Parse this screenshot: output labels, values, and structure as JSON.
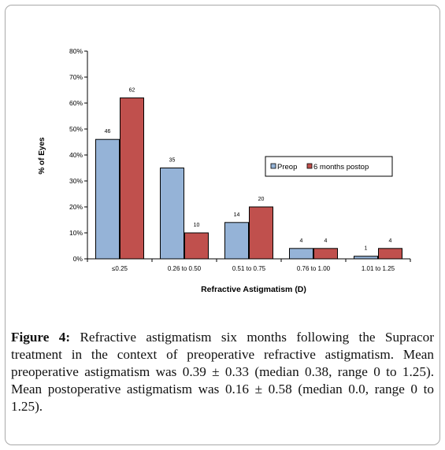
{
  "chart_data": {
    "type": "bar",
    "categories": [
      "≤0.25",
      "0.26 to 0.50",
      "0.51 to 0.75",
      "0.76 to 1.00",
      "1.01 to 1.25"
    ],
    "series": [
      {
        "name": "Preop",
        "values": [
          46,
          35,
          14,
          4,
          1
        ],
        "color": "#95b3d7"
      },
      {
        "name": "6 months postop",
        "values": [
          62,
          10,
          20,
          4,
          4
        ],
        "color": "#c0504d"
      }
    ],
    "xlabel": "Refractive Astigmatism (D)",
    "ylabel": "% of Eyes",
    "ylim": [
      0,
      80
    ],
    "yticks": [
      "0%",
      "10%",
      "20%",
      "30%",
      "40%",
      "50%",
      "60%",
      "70%",
      "80%"
    ],
    "ytick_values": [
      0,
      10,
      20,
      30,
      40,
      50,
      60,
      70,
      80
    ],
    "grid": false,
    "legend_position": "right",
    "data_labels": true
  },
  "caption": {
    "label": "Figure 4:",
    "text": " Refractive astigmatism six months following the Supracor treatment in the context of preoperative refractive astigmatism. Mean preoperative astigmatism was 0.39 ± 0.33 (median 0.38, range 0 to 1.25). Mean postoperative astigmatism was 0.16 ± 0.58 (median 0.0, range 0 to 1.25)."
  }
}
